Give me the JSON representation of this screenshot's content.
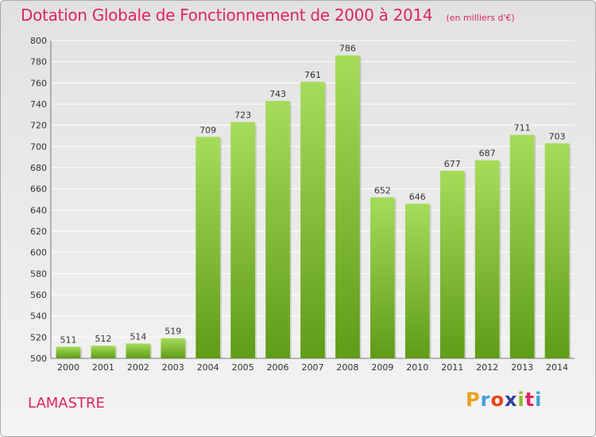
{
  "header": {
    "title": "Dotation Globale de Fonctionnement de 2000 à 2014",
    "subtitle": "(en milliers d'€)"
  },
  "commune": "LAMASTRE",
  "brand": {
    "letters": [
      "P",
      "r",
      "o",
      "x",
      "i",
      "t",
      "i"
    ],
    "colors": [
      "#e8a21b",
      "#3aa2dc",
      "#e8421b",
      "#2f3f9a",
      "#8dbb2a",
      "#e0245e",
      "#3aa2dc"
    ]
  },
  "colors": {
    "bar_top": "#a6dc5a",
    "bar_bottom": "#5f9c17",
    "grid": "#ffffff",
    "accent": "#e0245e"
  },
  "chart_data": {
    "type": "bar",
    "title": "Dotation Globale de Fonctionnement de 2000 à 2014",
    "subtitle": "(en milliers d'€)",
    "categories": [
      "2000",
      "2001",
      "2002",
      "2003",
      "2004",
      "2005",
      "2006",
      "2007",
      "2008",
      "2009",
      "2010",
      "2011",
      "2012",
      "2013",
      "2014"
    ],
    "values": [
      511,
      512,
      514,
      519,
      709,
      723,
      743,
      761,
      786,
      652,
      646,
      677,
      687,
      711,
      703
    ],
    "ylim": [
      500,
      800
    ],
    "yticks": [
      500,
      520,
      540,
      560,
      580,
      600,
      620,
      640,
      660,
      680,
      700,
      720,
      740,
      760,
      780,
      800
    ],
    "grid": true,
    "xlabel": "",
    "ylabel": ""
  }
}
